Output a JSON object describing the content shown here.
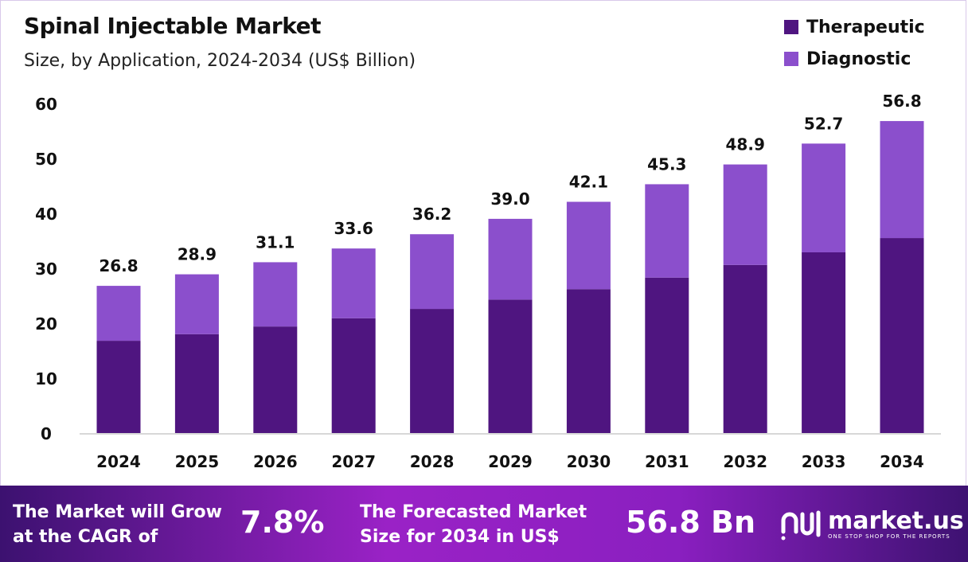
{
  "colors": {
    "therapeutic": "#4f1580",
    "diagnostic": "#8b4fcc",
    "footer_start": "#3c1170",
    "footer_end": "#9a22c6"
  },
  "chart_data": {
    "type": "bar",
    "stacked": true,
    "title": "Spinal Injectable Market",
    "subtitle": "Size, by Application, 2024-2034 (US$ Billion)",
    "categories": [
      "2024",
      "2025",
      "2026",
      "2027",
      "2028",
      "2029",
      "2030",
      "2031",
      "2032",
      "2033",
      "2034"
    ],
    "series": [
      {
        "name": "Therapeutic",
        "values": [
          16.8,
          18.0,
          19.4,
          20.9,
          22.6,
          24.3,
          26.2,
          28.3,
          30.6,
          32.9,
          35.5
        ]
      },
      {
        "name": "Diagnostic",
        "values": [
          10.0,
          10.9,
          11.7,
          12.7,
          13.6,
          14.7,
          15.9,
          17.0,
          18.3,
          19.8,
          21.3
        ]
      }
    ],
    "totals": [
      "26.8",
      "28.9",
      "31.1",
      "33.6",
      "36.2",
      "39.0",
      "42.1",
      "45.3",
      "48.9",
      "52.7",
      "56.8"
    ],
    "yticks": [
      0,
      10,
      20,
      30,
      40,
      50,
      60
    ],
    "ylim": [
      0,
      60
    ],
    "grid": false,
    "legend": "top-right"
  },
  "footer": {
    "cagr_text_1": "The Market will Grow",
    "cagr_text_2": "at the CAGR of",
    "cagr_value": "7.8%",
    "forecast_text_1": "The Forecasted Market",
    "forecast_text_2": "Size for 2034 in US$",
    "forecast_value": "56.8 Bn",
    "logo_name": "market.us",
    "logo_tagline": "ONE STOP SHOP FOR THE REPORTS"
  }
}
